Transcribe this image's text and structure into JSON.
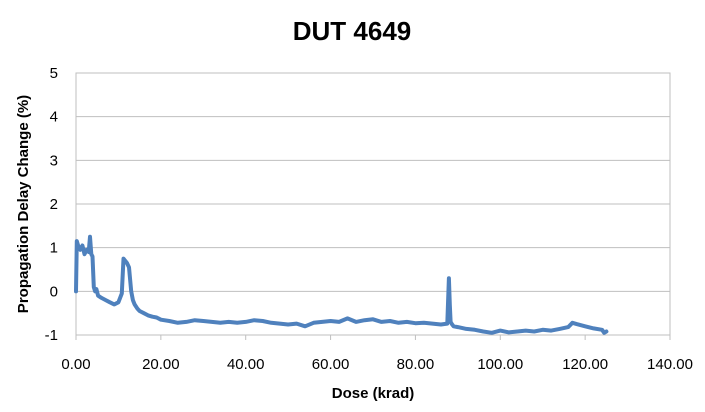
{
  "chart_data": {
    "type": "line",
    "title": "DUT 4649",
    "xlabel": "Dose (krad)",
    "ylabel": "Propagation Delay Change (%)",
    "xlim": [
      0,
      140
    ],
    "ylim": [
      -1,
      5
    ],
    "x_ticks": [
      "0.00",
      "20.00",
      "40.00",
      "60.00",
      "80.00",
      "100.00",
      "120.00",
      "140.00"
    ],
    "y_ticks": [
      "-1",
      "0",
      "1",
      "2",
      "3",
      "4",
      "5"
    ],
    "grid": "horizontal",
    "legend": "none",
    "series": [
      {
        "color": "#4F81BD",
        "x": [
          0,
          0.2,
          0.5,
          1,
          1.5,
          2,
          2.5,
          3,
          3.3,
          3.6,
          3.9,
          4.2,
          4.5,
          4.8,
          5.2,
          6,
          7,
          8,
          9,
          10,
          10.8,
          11.2,
          11.6,
          12,
          12.5,
          13,
          13.4,
          13.8,
          14.5,
          15,
          16,
          17,
          18,
          19,
          20,
          22,
          24,
          26,
          28,
          30,
          32,
          34,
          36,
          38,
          40,
          42,
          44,
          46,
          48,
          50,
          52,
          54,
          56,
          58,
          60,
          62,
          64,
          66,
          68,
          70,
          72,
          74,
          76,
          78,
          80,
          82,
          84,
          86,
          87.5,
          87.9,
          88.1,
          88.3,
          88.6,
          89,
          90,
          92,
          94,
          96,
          98,
          100,
          102,
          104,
          106,
          108,
          110,
          112,
          114,
          116,
          117,
          118,
          120,
          122,
          124,
          124.5,
          125
        ],
        "y": [
          0.0,
          1.15,
          1.05,
          0.95,
          1.05,
          0.85,
          0.95,
          0.9,
          1.25,
          0.85,
          0.8,
          0.1,
          0.0,
          0.05,
          -0.1,
          -0.15,
          -0.2,
          -0.25,
          -0.3,
          -0.25,
          -0.05,
          0.75,
          0.7,
          0.65,
          0.55,
          0.0,
          -0.2,
          -0.3,
          -0.4,
          -0.45,
          -0.5,
          -0.55,
          -0.58,
          -0.6,
          -0.65,
          -0.68,
          -0.72,
          -0.7,
          -0.66,
          -0.68,
          -0.7,
          -0.72,
          -0.7,
          -0.72,
          -0.7,
          -0.66,
          -0.68,
          -0.72,
          -0.74,
          -0.76,
          -0.74,
          -0.8,
          -0.72,
          -0.7,
          -0.68,
          -0.7,
          -0.62,
          -0.7,
          -0.66,
          -0.64,
          -0.7,
          -0.68,
          -0.72,
          -0.7,
          -0.73,
          -0.72,
          -0.74,
          -0.76,
          -0.74,
          0.3,
          -0.3,
          -0.7,
          -0.75,
          -0.8,
          -0.82,
          -0.86,
          -0.88,
          -0.92,
          -0.95,
          -0.9,
          -0.94,
          -0.92,
          -0.9,
          -0.92,
          -0.88,
          -0.9,
          -0.86,
          -0.82,
          -0.72,
          -0.75,
          -0.8,
          -0.85,
          -0.88,
          -0.95,
          -0.92
        ]
      }
    ]
  }
}
